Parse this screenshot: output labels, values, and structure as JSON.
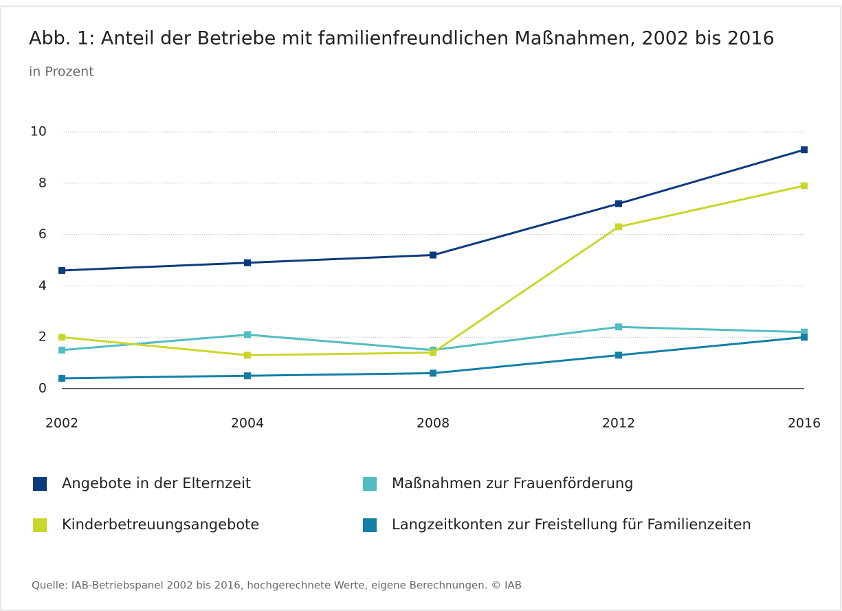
{
  "chart_data": {
    "type": "line",
    "title": "Abb. 1: Anteil der Betriebe mit familienfreundlichen Maßnahmen, 2002 bis 2016",
    "subtitle": "in Prozent",
    "categories": [
      "2002",
      "2004",
      "2008",
      "2012",
      "2016"
    ],
    "series": [
      {
        "name": "Angebote in der Elternzeit",
        "color": "#0b3b7c",
        "values": [
          4.6,
          4.9,
          5.2,
          7.2,
          9.3
        ]
      },
      {
        "name": "Maßnahmen zur Frauenförderung",
        "color": "#52bcc3",
        "values": [
          1.5,
          2.1,
          1.5,
          2.4,
          2.2
        ]
      },
      {
        "name": "Kinderbetreuungsangebote",
        "color": "#c9d62c",
        "values": [
          2.0,
          1.3,
          1.4,
          6.3,
          7.9
        ]
      },
      {
        "name": "Langzeitkonten zur Freistellung für Familienzeiten",
        "color": "#127fa6",
        "values": [
          0.4,
          0.5,
          0.6,
          1.3,
          2.0
        ]
      }
    ],
    "ylim": [
      0,
      10
    ],
    "yticks": [
      0,
      2,
      4,
      6,
      8,
      10
    ],
    "grid": true,
    "source": "Quelle: IAB-Betriebspanel 2002 bis 2016, hochgerechnete Werte, eigene Berechnungen. © IAB"
  }
}
